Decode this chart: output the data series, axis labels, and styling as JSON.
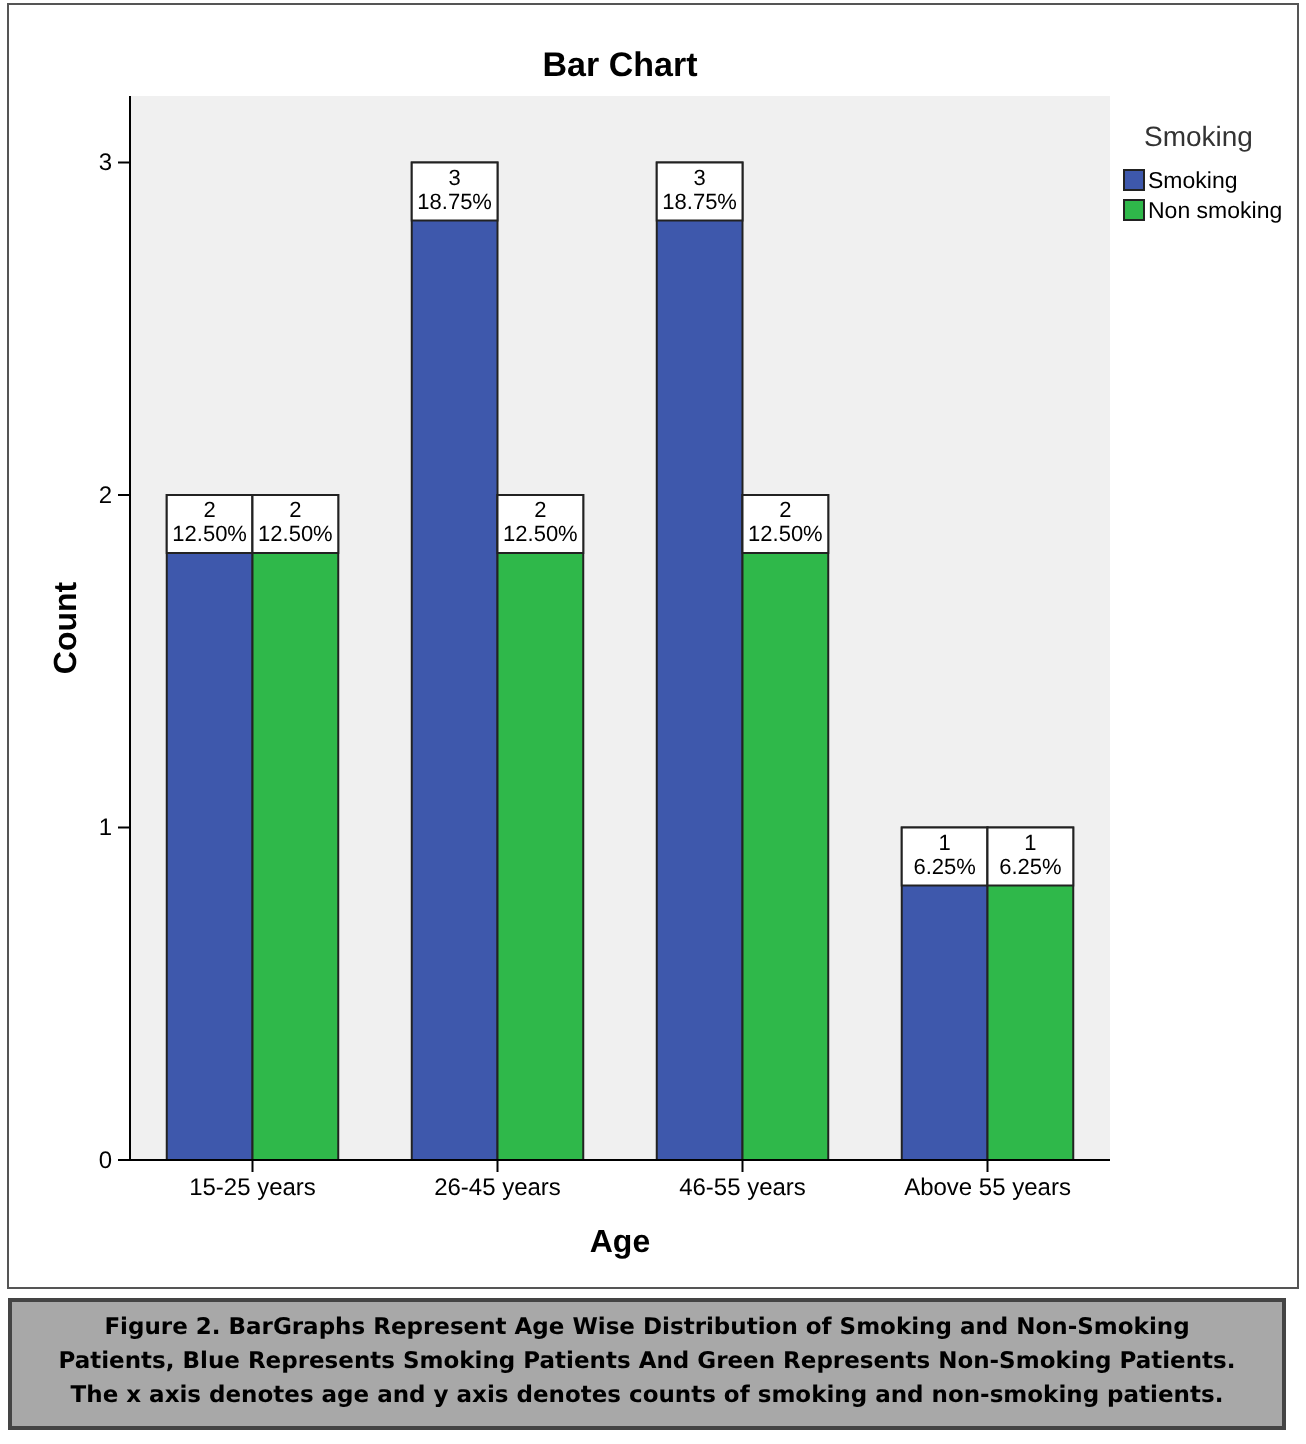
{
  "chart_data": {
    "type": "bar",
    "title": "Bar Chart",
    "xlabel": "Age",
    "ylabel": "Count",
    "legend_title": "Smoking",
    "categories": [
      "15-25 years",
      "26-45 years",
      "46-55 years",
      "Above 55 years"
    ],
    "series": [
      {
        "name": "Smoking",
        "color": "#3e58ac",
        "values": [
          2,
          3,
          3,
          1
        ],
        "value_labels": [
          "2\n12.50%",
          "3\n18.75%",
          "3\n18.75%",
          "1\n6.25%"
        ]
      },
      {
        "name": "Non smoking",
        "color": "#2fb84a",
        "values": [
          2,
          2,
          2,
          1
        ],
        "value_labels": [
          "2\n12.50%",
          "2\n12.50%",
          "2\n12.50%",
          "1\n6.25%"
        ]
      }
    ],
    "ylim": [
      0,
      3.2
    ],
    "yticks": [
      0,
      1,
      2,
      3
    ],
    "grid": false,
    "legend": "top right",
    "annotations": [
      "Figure 2. BarGraphs Represent Age Wise Distribution of Smoking and Non-Smoking Patients, Blue Represents Smoking Patients And Green Represents Non-Smoking Patients. The x axis denotes age and y axis denotes counts of smoking and non-smoking patients."
    ]
  }
}
